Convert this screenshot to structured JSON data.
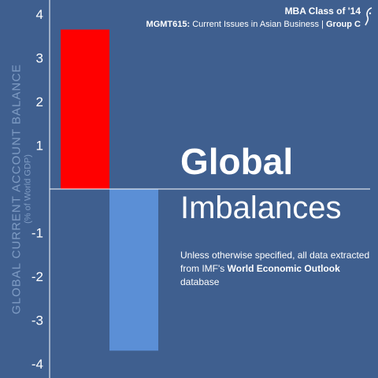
{
  "header": {
    "class_label": "MBA Class of '14",
    "course_code": "MGMT615:",
    "course_title": " Current Issues in Asian Business  |  ",
    "group_label": "Group C"
  },
  "title": {
    "line1": "Global",
    "line2": "Imbalances"
  },
  "note": {
    "line1": "Unless otherwise specified, all data extracted",
    "line2_prefix": "from IMF's ",
    "source_name": "World Economic Outlook",
    "line2_suffix": " database"
  },
  "colors": {
    "background": "#3f5f8f",
    "surplus_bar": "#ff0000",
    "deficit_bar": "#5b8fd6",
    "axis_label": "#7f9cc4"
  },
  "chart_data": {
    "type": "bar",
    "ylabel": "GLOBAL CURRENT ACCOUNT BALANCE",
    "ylabel_sub": "(% of World GDP)",
    "ylim": [
      -4.2,
      4.2
    ],
    "yticks": [
      4,
      3,
      2,
      1,
      -1,
      -2,
      -3,
      -4
    ],
    "bars": [
      {
        "value": 3.65,
        "color": "#ff0000"
      },
      {
        "value": -3.7,
        "color": "#5b8fd6"
      }
    ],
    "grid": false
  }
}
